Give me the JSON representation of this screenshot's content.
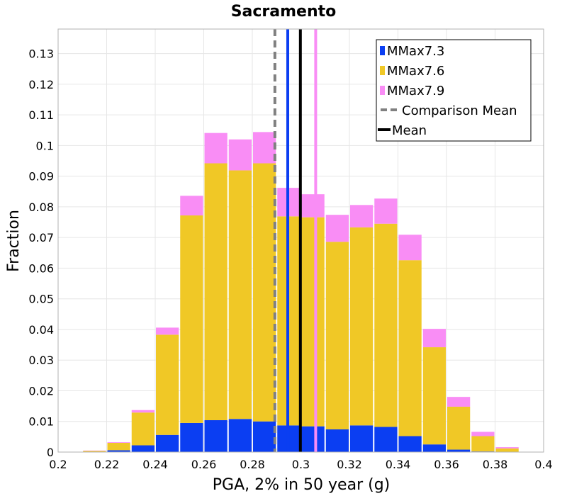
{
  "chart_data": {
    "type": "bar",
    "stacked": true,
    "title": "Sacramento",
    "xlabel": "PGA, 2% in 50 year (g)",
    "ylabel": "Fraction",
    "xlim": [
      0.2,
      0.4
    ],
    "ylim": [
      0,
      0.138
    ],
    "xticks": [
      "0.2",
      "0.22",
      "0.24",
      "0.26",
      "0.28",
      "0.3",
      "0.32",
      "0.34",
      "0.36",
      "0.38",
      "0.4"
    ],
    "yticks": [
      "0",
      "0.01",
      "0.02",
      "0.03",
      "0.04",
      "0.05",
      "0.06",
      "0.07",
      "0.08",
      "0.09",
      "0.1",
      "0.11",
      "0.12",
      "0.13"
    ],
    "bin_width": 0.01,
    "bin_centers": [
      0.215,
      0.225,
      0.235,
      0.245,
      0.255,
      0.265,
      0.275,
      0.285,
      0.295,
      0.305,
      0.315,
      0.325,
      0.335,
      0.345,
      0.355,
      0.365,
      0.375,
      0.385
    ],
    "grid": true,
    "legend_position": "top-right",
    "series": [
      {
        "name": "MMax7.3",
        "color": "#0b3ef2",
        "values": [
          0.0001,
          0.0006,
          0.0022,
          0.0056,
          0.0095,
          0.0104,
          0.0108,
          0.01,
          0.0087,
          0.0084,
          0.0074,
          0.0087,
          0.0082,
          0.0052,
          0.0025,
          0.0008,
          0.0002,
          0.0001
        ]
      },
      {
        "name": "MMax7.6",
        "color": "#f0c826",
        "values": [
          0.0003,
          0.0024,
          0.0107,
          0.0327,
          0.0677,
          0.0838,
          0.0811,
          0.0842,
          0.0682,
          0.0682,
          0.0612,
          0.0646,
          0.0663,
          0.0574,
          0.0317,
          0.014,
          0.005,
          0.0011
        ]
      },
      {
        "name": "MMax7.9",
        "color": "#f98df5",
        "values": [
          0.0001,
          0.0002,
          0.0008,
          0.0023,
          0.0064,
          0.0099,
          0.0101,
          0.0102,
          0.0093,
          0.0075,
          0.0088,
          0.0073,
          0.0082,
          0.0083,
          0.006,
          0.0032,
          0.0014,
          0.0004
        ]
      }
    ],
    "vertical_lines": [
      {
        "name": "Comparison Mean",
        "x": 0.2893,
        "color": "#808080",
        "style": "dashed"
      },
      {
        "name": "MMax7.3 mean",
        "x": 0.2946,
        "color": "#0b3ef2",
        "style": "solid"
      },
      {
        "name": "Mean",
        "x": 0.2998,
        "color": "#000000",
        "style": "solid"
      },
      {
        "name": "MMax7.9 mean",
        "x": 0.3061,
        "color": "#f98df5",
        "style": "solid"
      }
    ],
    "legend": [
      {
        "label": "MMax7.3",
        "kind": "box",
        "color": "#0b3ef2"
      },
      {
        "label": "MMax7.6",
        "kind": "box",
        "color": "#f0c826"
      },
      {
        "label": "MMax7.9",
        "kind": "box",
        "color": "#f98df5"
      },
      {
        "label": "Comparison Mean",
        "kind": "dash",
        "color": "#808080"
      },
      {
        "label": "Mean",
        "kind": "line",
        "color": "#000000"
      }
    ]
  }
}
